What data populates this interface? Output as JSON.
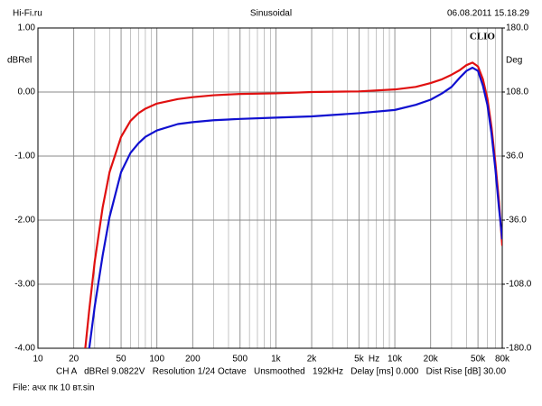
{
  "chart_data": {
    "type": "line",
    "title": "Sinusoidal",
    "source": "Hi-Fi.ru",
    "date": "06.08.2011 15.18.29",
    "brand": "CLIO",
    "ylabel": "dBRel",
    "y2label": "Deg",
    "xlabel": "Hz",
    "footer": "CH A   dBRel 9.0822V   Resolution 1/24 Octave   Unsmoothed   192kHz   Delay [ms] 0.000   Dist Rise [dB] 30.00",
    "file": "File: ачх пк 10 вт.sin",
    "xscale": "log",
    "grid": true,
    "xlim": [
      10,
      80000
    ],
    "xticks": [
      10,
      20,
      50,
      100,
      200,
      500,
      {
        "value": 1000,
        "label": "1k"
      },
      {
        "value": 2000,
        "label": "2k"
      },
      {
        "value": 5000,
        "label": "5k"
      },
      {
        "value": 10000,
        "label": "10k"
      },
      {
        "value": 20000,
        "label": "20k"
      },
      {
        "value": 50000,
        "label": "50k"
      },
      {
        "value": 80000,
        "label": "80k"
      }
    ],
    "x_minor_grid": [
      30,
      40,
      60,
      70,
      80,
      90,
      300,
      400,
      600,
      700,
      800,
      900,
      3000,
      4000,
      6000,
      7000,
      8000,
      9000,
      30000,
      40000,
      60000,
      70000
    ],
    "ylim": [
      -4,
      1
    ],
    "yticks": [
      {
        "value": 1,
        "label": "1.00"
      },
      {
        "value": 0,
        "label": "0.00"
      },
      {
        "value": -1,
        "label": "-1.00"
      },
      {
        "value": -2,
        "label": "-2.00"
      },
      {
        "value": -3,
        "label": "-3.00"
      },
      {
        "value": -4,
        "label": "-4.00"
      }
    ],
    "y2lim": [
      -180,
      180
    ],
    "y2ticks": [
      {
        "value": 180,
        "label": "180.0"
      },
      {
        "value": 108,
        "label": "108.0"
      },
      {
        "value": 36,
        "label": "36.0"
      },
      {
        "value": -36,
        "label": "-36.0"
      },
      {
        "value": -108,
        "label": "-108.0"
      },
      {
        "value": -180,
        "label": "-180.0"
      }
    ],
    "x": [
      25,
      27,
      30,
      35,
      40,
      50,
      60,
      70,
      80,
      100,
      150,
      200,
      300,
      500,
      1000,
      2000,
      5000,
      10000,
      15000,
      20000,
      25000,
      30000,
      35000,
      40000,
      45000,
      50000,
      55000,
      60000,
      65000,
      70000,
      75000,
      80000
    ],
    "series": [
      {
        "color": "#e01010",
        "values": [
          -4.0,
          -3.4,
          -2.65,
          -1.8,
          -1.25,
          -0.7,
          -0.45,
          -0.33,
          -0.26,
          -0.18,
          -0.11,
          -0.08,
          -0.05,
          -0.03,
          -0.02,
          0.0,
          0.01,
          0.04,
          0.08,
          0.14,
          0.2,
          0.27,
          0.34,
          0.42,
          0.46,
          0.4,
          0.2,
          -0.1,
          -0.55,
          -1.1,
          -1.7,
          -2.4
        ]
      },
      {
        "color": "#1010d0",
        "values": [
          null,
          -4.0,
          -3.35,
          -2.55,
          -1.95,
          -1.25,
          -0.95,
          -0.8,
          -0.7,
          -0.6,
          -0.5,
          -0.47,
          -0.44,
          -0.42,
          -0.4,
          -0.38,
          -0.33,
          -0.28,
          -0.2,
          -0.12,
          -0.02,
          0.08,
          0.22,
          0.33,
          0.38,
          0.33,
          0.1,
          -0.2,
          -0.65,
          -1.2,
          -1.8,
          -2.3
        ]
      }
    ]
  }
}
